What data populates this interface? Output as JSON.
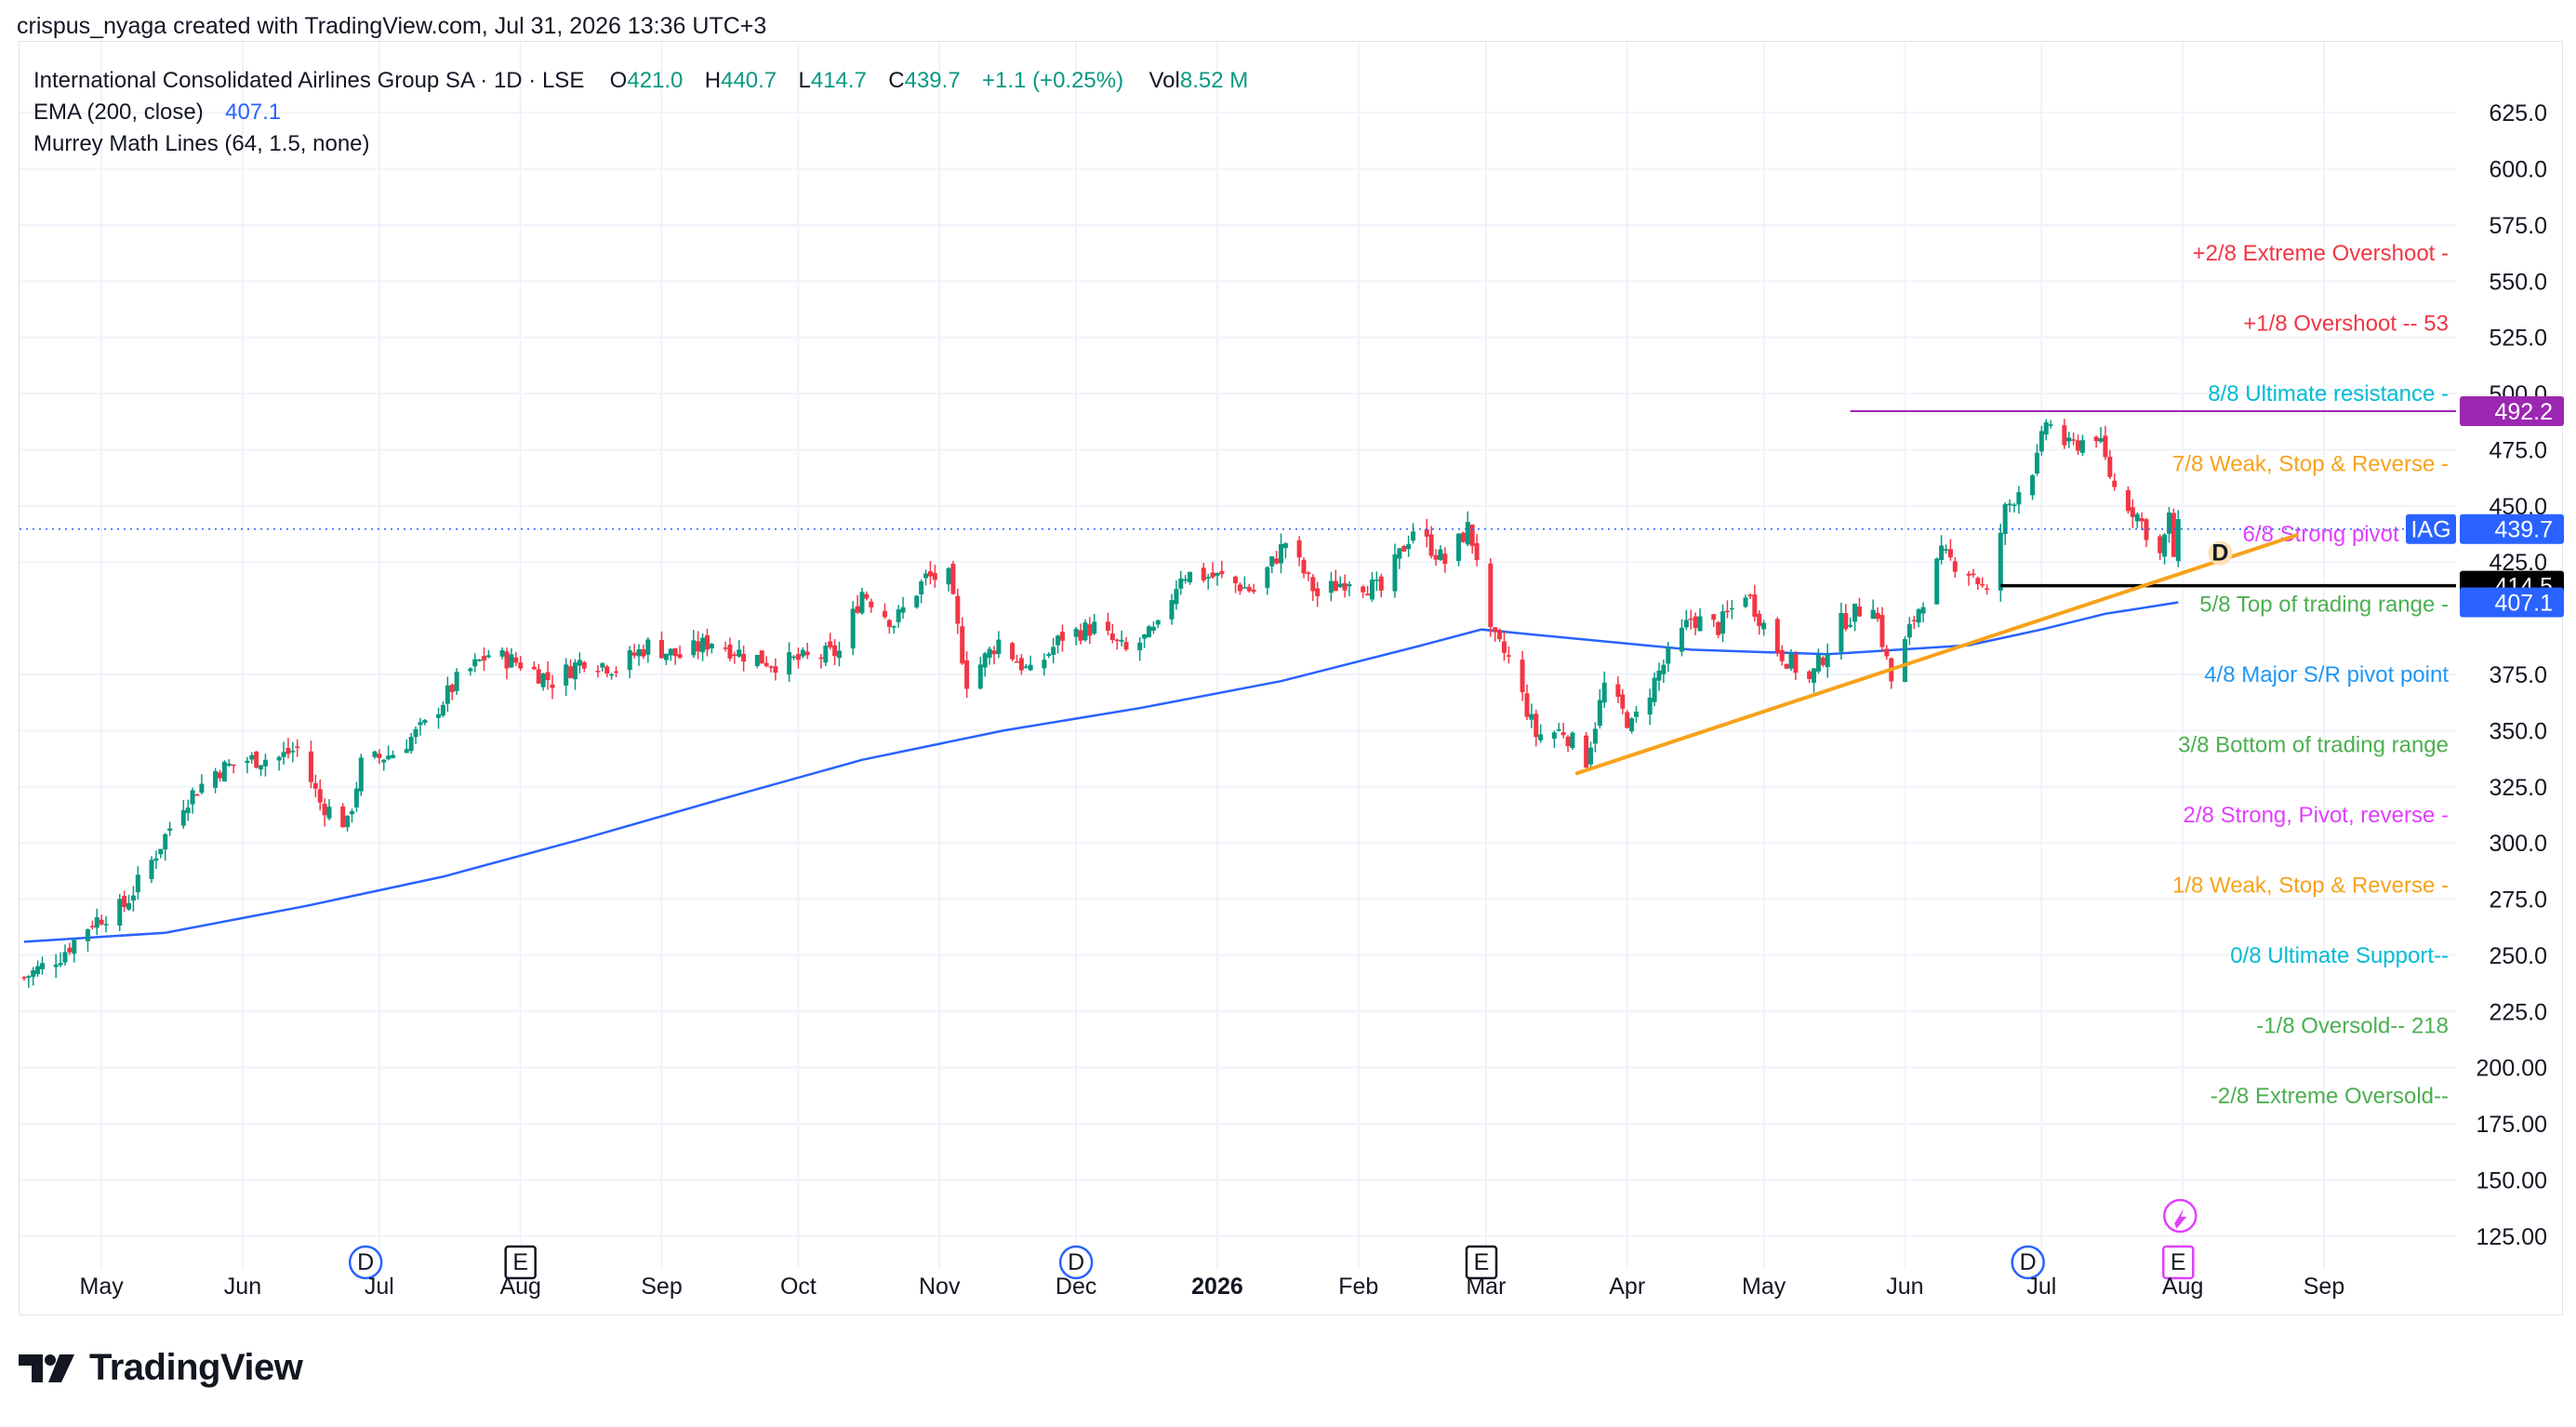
{
  "header": {
    "credit": "crispus_nyaga created with TradingView.com, Jul 31, 2026 13:36 UTC+3"
  },
  "legend": {
    "symbol": "International Consolidated Airlines Group SA · 1D · LSE",
    "o_label": "O",
    "o": "421.0",
    "h_label": "H",
    "h": "440.7",
    "l_label": "L",
    "l": "414.7",
    "c_label": "C",
    "c": "439.7",
    "change": "+1.1 (+0.25%)",
    "vol_label": "Vol",
    "vol": "8.52 M",
    "ema_label": "EMA (200, close)",
    "ema_value": "407.1",
    "murrey_label": "Murrey Math Lines (64, 1.5, none)"
  },
  "footer": {
    "brand": "TradingView",
    "logo_icon": "tradingview-logo-icon"
  },
  "colors": {
    "up": "#089981",
    "down": "#f23645",
    "ema": "#2962ff",
    "trend": "#f7a21b",
    "resistance": "#9c27b0",
    "support": "#000000",
    "last": "#2962ff"
  },
  "chart_data": {
    "type": "candlestick",
    "symbol": "IAG",
    "ylim": [
      110,
      640
    ],
    "y_ticks": [
      "625.0",
      "600.0",
      "575.0",
      "550.0",
      "525.0",
      "500.0",
      "475.0",
      "450.0",
      "425.0",
      "375.0",
      "350.0",
      "325.0",
      "300.0",
      "275.0",
      "250.0",
      "225.0",
      "200.00",
      "175.00",
      "150.00",
      "125.00"
    ],
    "x_range": [
      "2025-04-13",
      "2026-09-30"
    ],
    "x_ticks": [
      {
        "date": "2025-05-01",
        "label": "May",
        "bold": false
      },
      {
        "date": "2025-06-01",
        "label": "Jun",
        "bold": false
      },
      {
        "date": "2025-07-01",
        "label": "Jul",
        "bold": false
      },
      {
        "date": "2025-08-01",
        "label": "Aug",
        "bold": false
      },
      {
        "date": "2025-09-01",
        "label": "Sep",
        "bold": false
      },
      {
        "date": "2025-10-01",
        "label": "Oct",
        "bold": false
      },
      {
        "date": "2025-11-01",
        "label": "Nov",
        "bold": false
      },
      {
        "date": "2025-12-01",
        "label": "Dec",
        "bold": false
      },
      {
        "date": "2026-01-01",
        "label": "2026",
        "bold": true
      },
      {
        "date": "2026-02-01",
        "label": "Feb",
        "bold": false
      },
      {
        "date": "2026-03-01",
        "label": "Mar",
        "bold": false
      },
      {
        "date": "2026-04-01",
        "label": "Apr",
        "bold": false
      },
      {
        "date": "2026-05-01",
        "label": "May",
        "bold": false
      },
      {
        "date": "2026-06-01",
        "label": "Jun",
        "bold": false
      },
      {
        "date": "2026-07-01",
        "label": "Jul",
        "bold": false
      },
      {
        "date": "2026-08-01",
        "label": "Aug",
        "bold": false
      },
      {
        "date": "2026-09-01",
        "label": "Sep",
        "bold": false
      }
    ],
    "close_anchors": [
      [
        "2025-04-14",
        240
      ],
      [
        "2025-04-22",
        250
      ],
      [
        "2025-04-29",
        265
      ],
      [
        "2025-05-06",
        272
      ],
      [
        "2025-05-12",
        292
      ],
      [
        "2025-05-19",
        318
      ],
      [
        "2025-05-26",
        332
      ],
      [
        "2025-06-02",
        337
      ],
      [
        "2025-06-09",
        338
      ],
      [
        "2025-06-13",
        342
      ],
      [
        "2025-06-18",
        318
      ],
      [
        "2025-06-24",
        308
      ],
      [
        "2025-06-27",
        335
      ],
      [
        "2025-07-04",
        340
      ],
      [
        "2025-07-11",
        352
      ],
      [
        "2025-07-18",
        372
      ],
      [
        "2025-07-25",
        384
      ],
      [
        "2025-08-01",
        380
      ],
      [
        "2025-08-08",
        372
      ],
      [
        "2025-08-15",
        382
      ],
      [
        "2025-08-22",
        378
      ],
      [
        "2025-08-29",
        388
      ],
      [
        "2025-09-05",
        383
      ],
      [
        "2025-09-12",
        390
      ],
      [
        "2025-09-19",
        384
      ],
      [
        "2025-09-26",
        380
      ],
      [
        "2025-10-03",
        382
      ],
      [
        "2025-10-10",
        385
      ],
      [
        "2025-10-15",
        412
      ],
      [
        "2025-10-22",
        398
      ],
      [
        "2025-10-29",
        418
      ],
      [
        "2025-11-03",
        418
      ],
      [
        "2025-11-07",
        372
      ],
      [
        "2025-11-14",
        390
      ],
      [
        "2025-11-21",
        375
      ],
      [
        "2025-11-28",
        392
      ],
      [
        "2025-12-05",
        396
      ],
      [
        "2025-12-12",
        385
      ],
      [
        "2025-12-19",
        395
      ],
      [
        "2025-12-24",
        420
      ],
      [
        "2026-01-02",
        418
      ],
      [
        "2026-01-09",
        412
      ],
      [
        "2026-01-16",
        434
      ],
      [
        "2026-01-23",
        410
      ],
      [
        "2026-01-30",
        418
      ],
      [
        "2026-02-06",
        412
      ],
      [
        "2026-02-13",
        440
      ],
      [
        "2026-02-20",
        425
      ],
      [
        "2026-02-25",
        440
      ],
      [
        "2026-02-27",
        428
      ],
      [
        "2026-03-02",
        392
      ],
      [
        "2026-03-06",
        382
      ],
      [
        "2026-03-12",
        348
      ],
      [
        "2026-03-18",
        350
      ],
      [
        "2026-03-23",
        337
      ],
      [
        "2026-03-27",
        370
      ],
      [
        "2026-04-02",
        352
      ],
      [
        "2026-04-08",
        376
      ],
      [
        "2026-04-15",
        400
      ],
      [
        "2026-04-21",
        396
      ],
      [
        "2026-04-27",
        412
      ],
      [
        "2026-05-04",
        386
      ],
      [
        "2026-05-11",
        372
      ],
      [
        "2026-05-18",
        398
      ],
      [
        "2026-05-25",
        408
      ],
      [
        "2026-05-29",
        372
      ],
      [
        "2026-06-03",
        400
      ],
      [
        "2026-06-09",
        428
      ],
      [
        "2026-06-16",
        420
      ],
      [
        "2026-06-19",
        410
      ],
      [
        "2026-06-23",
        448
      ],
      [
        "2026-06-30",
        470
      ],
      [
        "2026-07-02",
        488
      ],
      [
        "2026-07-07",
        476
      ],
      [
        "2026-07-13",
        482
      ],
      [
        "2026-07-17",
        458
      ],
      [
        "2026-07-22",
        446
      ],
      [
        "2026-07-27",
        428
      ],
      [
        "2026-07-29",
        444
      ],
      [
        "2026-07-30",
        428
      ],
      [
        "2026-07-31",
        439.7
      ]
    ],
    "ema_200": [
      [
        "2025-04-14",
        256
      ],
      [
        "2025-05-15",
        260
      ],
      [
        "2025-06-15",
        272
      ],
      [
        "2025-07-15",
        285
      ],
      [
        "2025-08-15",
        302
      ],
      [
        "2025-09-15",
        320
      ],
      [
        "2025-10-15",
        337
      ],
      [
        "2025-11-15",
        350
      ],
      [
        "2025-12-15",
        360
      ],
      [
        "2026-01-15",
        372
      ],
      [
        "2026-02-15",
        388
      ],
      [
        "2026-02-28",
        395
      ],
      [
        "2026-03-15",
        392
      ],
      [
        "2026-04-15",
        386
      ],
      [
        "2026-05-15",
        384
      ],
      [
        "2026-06-15",
        388
      ],
      [
        "2026-07-01",
        395
      ],
      [
        "2026-07-15",
        402
      ],
      [
        "2026-07-31",
        407.1
      ]
    ],
    "trendline": [
      [
        "2026-03-21",
        331
      ],
      [
        "2026-08-26",
        437
      ]
    ],
    "resistance_line": {
      "from": "2026-05-20",
      "to": "2026-09-30",
      "value": 492.2
    },
    "support_line": {
      "from": "2026-06-22",
      "to": "2026-09-30",
      "value": 414.5
    },
    "last_price": 439.7,
    "price_badges": [
      {
        "label": "492.2",
        "value": 492.2,
        "color": "#9c27b0"
      },
      {
        "label": "439.7",
        "value": 439.7,
        "color": "#2962ff",
        "tag": "IAG"
      },
      {
        "label": "414.5",
        "value": 414.5,
        "color": "#000000"
      },
      {
        "label": "407.1",
        "value": 407.1,
        "color": "#2962ff"
      }
    ],
    "murrey_lines": [
      {
        "label": "+2/8 Extreme Overshoot -",
        "value": 562.5,
        "color": "#f23645"
      },
      {
        "label": "+1/8 Overshoot --  53",
        "value": 531.25,
        "color": "#f23645"
      },
      {
        "label": "8/8 Ultimate resistance -",
        "value": 500,
        "color": "#00bcd4"
      },
      {
        "label": "7/8 Weak, Stop & Reverse -",
        "value": 468.75,
        "color": "#f7a21b"
      },
      {
        "label": "6/8 Strong pivot reve",
        "value": 437.5,
        "color": "#e040fb"
      },
      {
        "label": "5/8 Top of trading range -",
        "value": 406.25,
        "color": "#4caf50"
      },
      {
        "label": "4/8 Major S/R pivot point",
        "value": 375,
        "color": "#2196f3"
      },
      {
        "label": "3/8 Bottom of trading range",
        "value": 343.75,
        "color": "#4caf50"
      },
      {
        "label": "2/8 Strong, Pivot, reverse -",
        "value": 312.5,
        "color": "#e040fb"
      },
      {
        "label": "1/8 Weak, Stop & Reverse -",
        "value": 281.25,
        "color": "#f7a21b"
      },
      {
        "label": "0/8 Ultimate Support--",
        "value": 250,
        "color": "#00bcd4"
      },
      {
        "label": "-1/8 Oversold--  218",
        "value": 218.75,
        "color": "#4caf50"
      },
      {
        "label": "-2/8 Extreme Oversold--",
        "value": 187.5,
        "color": "#4caf50"
      }
    ],
    "events": [
      {
        "date": "2025-06-28",
        "type": "D",
        "label": "D"
      },
      {
        "date": "2025-08-01",
        "type": "E",
        "label": "E"
      },
      {
        "date": "2025-12-01",
        "type": "D",
        "label": "D"
      },
      {
        "date": "2026-02-28",
        "type": "E",
        "label": "E"
      },
      {
        "date": "2026-06-28",
        "type": "D",
        "label": "D"
      },
      {
        "date": "2026-07-31",
        "type": "E",
        "label": "E"
      }
    ],
    "dividend_marker": {
      "date": "2026-08-08",
      "value": 429,
      "label": "D"
    }
  }
}
